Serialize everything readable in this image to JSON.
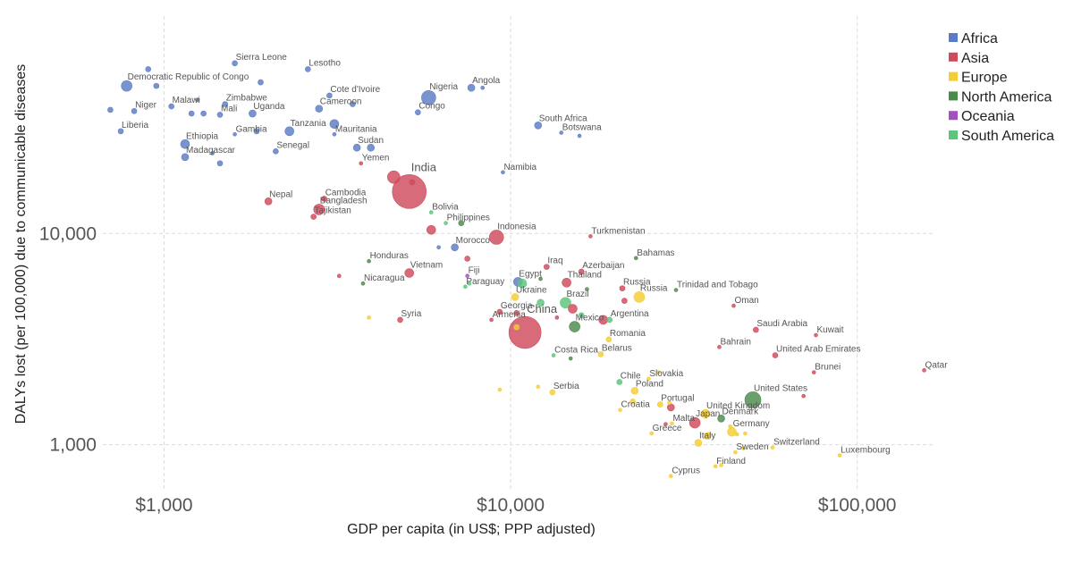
{
  "chart_data": {
    "type": "scatter",
    "xlabel": "GDP per capita (in US$; PPP adjusted)",
    "ylabel": "DALYs lost (per 100,000) due to communicable diseases",
    "x_scale": "log",
    "y_scale": "log",
    "xlim": [
      620,
      165000
    ],
    "ylim": [
      600,
      100000
    ],
    "x_ticks": [
      {
        "value": 1000,
        "label": "$1,000"
      },
      {
        "value": 10000,
        "label": "$10,000"
      },
      {
        "value": 100000,
        "label": "$100,000"
      }
    ],
    "y_ticks": [
      {
        "value": 1000,
        "label": "1,000"
      },
      {
        "value": 10000,
        "label": "10,000"
      }
    ],
    "grid": true,
    "legend_position": "top-right",
    "series": [
      {
        "name": "Africa",
        "color": "#5b7bc4",
        "points": [
          {
            "label": "Sierra Leone",
            "x": 1600,
            "y": 64000,
            "size": 3
          },
          {
            "label": "Lesotho",
            "x": 2600,
            "y": 60000,
            "size": 3
          },
          {
            "label": "Democratic Republic of Congo",
            "x": 780,
            "y": 50000,
            "size": 6
          },
          {
            "label": "",
            "x": 900,
            "y": 60000,
            "size": 3
          },
          {
            "label": "",
            "x": 950,
            "y": 50000,
            "size": 3
          },
          {
            "label": "",
            "x": 1900,
            "y": 52000,
            "size": 3
          },
          {
            "label": "Cote d'Ivoire",
            "x": 3000,
            "y": 45000,
            "size": 3
          },
          {
            "label": "Nigeria",
            "x": 5800,
            "y": 44000,
            "size": 8
          },
          {
            "label": "Angola",
            "x": 7700,
            "y": 49000,
            "size": 4
          },
          {
            "label": "",
            "x": 8300,
            "y": 49000,
            "size": 2
          },
          {
            "label": "Niger",
            "x": 820,
            "y": 38000,
            "size": 3
          },
          {
            "label": "Malawi",
            "x": 1050,
            "y": 40000,
            "size": 3
          },
          {
            "label": "Zimbabwe",
            "x": 1500,
            "y": 41000,
            "size": 3
          },
          {
            "label": "Cameroon",
            "x": 2800,
            "y": 39000,
            "size": 4
          },
          {
            "label": "",
            "x": 3500,
            "y": 41000,
            "size": 3
          },
          {
            "label": "",
            "x": 1250,
            "y": 43000,
            "size": 2
          },
          {
            "label": "Mali",
            "x": 1450,
            "y": 36500,
            "size": 3
          },
          {
            "label": "Uganda",
            "x": 1800,
            "y": 37000,
            "size": 4
          },
          {
            "label": "Congo",
            "x": 5400,
            "y": 37500,
            "size": 3
          },
          {
            "label": "",
            "x": 700,
            "y": 38500,
            "size": 3
          },
          {
            "label": "",
            "x": 1200,
            "y": 37000,
            "size": 3
          },
          {
            "label": "",
            "x": 1300,
            "y": 37000,
            "size": 3
          },
          {
            "label": "Liberia",
            "x": 750,
            "y": 30500,
            "size": 3
          },
          {
            "label": "Tanzania",
            "x": 2300,
            "y": 30500,
            "size": 5
          },
          {
            "label": "Gambia",
            "x": 1600,
            "y": 29500,
            "size": 2
          },
          {
            "label": "Mauritania",
            "x": 3100,
            "y": 29500,
            "size": 2
          },
          {
            "label": "",
            "x": 3100,
            "y": 33000,
            "size": 5
          },
          {
            "label": "",
            "x": 1850,
            "y": 30500,
            "size": 3
          },
          {
            "label": "Ethiopia",
            "x": 1150,
            "y": 26500,
            "size": 5
          },
          {
            "label": "South Africa",
            "x": 12000,
            "y": 32500,
            "size": 4
          },
          {
            "label": "Botswana",
            "x": 14000,
            "y": 30000,
            "size": 2
          },
          {
            "label": "",
            "x": 15800,
            "y": 29000,
            "size": 2
          },
          {
            "label": "Senegal",
            "x": 2100,
            "y": 24500,
            "size": 3
          },
          {
            "label": "Sudan",
            "x": 3600,
            "y": 25500,
            "size": 4
          },
          {
            "label": "",
            "x": 3950,
            "y": 25500,
            "size": 4
          },
          {
            "label": "Madagascar",
            "x": 1150,
            "y": 23000,
            "size": 4
          },
          {
            "label": "",
            "x": 1450,
            "y": 21500,
            "size": 3
          },
          {
            "label": "",
            "x": 1380,
            "y": 24000,
            "size": 2
          },
          {
            "label": "Namibia",
            "x": 9500,
            "y": 19500,
            "size": 2
          },
          {
            "label": "Morocco",
            "x": 6900,
            "y": 8600,
            "size": 4
          },
          {
            "label": "",
            "x": 6200,
            "y": 8600,
            "size": 2
          },
          {
            "label": "Egypt",
            "x": 10500,
            "y": 5900,
            "size": 5
          }
        ]
      },
      {
        "name": "Asia",
        "color": "#cf4a5b",
        "points": [
          {
            "label": "",
            "x": 4600,
            "y": 18500,
            "size": 7
          },
          {
            "label": "India",
            "x": 5100,
            "y": 15800,
            "size": 19
          },
          {
            "label": "",
            "x": 5200,
            "y": 17500,
            "size": 3
          },
          {
            "label": "Yemen",
            "x": 3700,
            "y": 21500,
            "size": 2
          },
          {
            "label": "Nepal",
            "x": 2000,
            "y": 14200,
            "size": 4
          },
          {
            "label": "Cambodia",
            "x": 2900,
            "y": 14600,
            "size": 3
          },
          {
            "label": "Bangladesh",
            "x": 2800,
            "y": 13000,
            "size": 6
          },
          {
            "label": "Tajikistan",
            "x": 2700,
            "y": 12000,
            "size": 3
          },
          {
            "label": "Indonesia",
            "x": 9100,
            "y": 9600,
            "size": 8
          },
          {
            "label": "",
            "x": 5900,
            "y": 10400,
            "size": 5
          },
          {
            "label": "Turkmenistan",
            "x": 17000,
            "y": 9700,
            "size": 2
          },
          {
            "label": "Vietnam",
            "x": 5100,
            "y": 6500,
            "size": 5
          },
          {
            "label": "",
            "x": 3200,
            "y": 6300,
            "size": 2
          },
          {
            "label": "Iraq",
            "x": 12700,
            "y": 6950,
            "size": 3
          },
          {
            "label": "Azerbaijan",
            "x": 16000,
            "y": 6600,
            "size": 3
          },
          {
            "label": "Thailand",
            "x": 14500,
            "y": 5850,
            "size": 5
          },
          {
            "label": "",
            "x": 7500,
            "y": 7600,
            "size": 3
          },
          {
            "label": "Russia",
            "x": 21000,
            "y": 5500,
            "size": 3
          },
          {
            "label": "",
            "x": 21300,
            "y": 4800,
            "size": 3
          },
          {
            "label": "",
            "x": 15100,
            "y": 4400,
            "size": 5
          },
          {
            "label": "Georgia",
            "x": 9300,
            "y": 4250,
            "size": 3
          },
          {
            "label": "Armenia",
            "x": 8800,
            "y": 3900,
            "size": 2
          },
          {
            "label": "",
            "x": 10400,
            "y": 4200,
            "size": 3
          },
          {
            "label": "Syria",
            "x": 4800,
            "y": 3900,
            "size": 3
          },
          {
            "label": "China",
            "x": 11000,
            "y": 3400,
            "size": 18
          },
          {
            "label": "",
            "x": 13600,
            "y": 4000,
            "size": 2
          },
          {
            "label": "Oman",
            "x": 44000,
            "y": 4550,
            "size": 2
          },
          {
            "label": "",
            "x": 18500,
            "y": 3900,
            "size": 5
          },
          {
            "label": "Saudi Arabia",
            "x": 51000,
            "y": 3500,
            "size": 3
          },
          {
            "label": "Kuwait",
            "x": 76000,
            "y": 3300,
            "size": 2
          },
          {
            "label": "Bahrain",
            "x": 40000,
            "y": 2900,
            "size": 2
          },
          {
            "label": "United Arab Emirates",
            "x": 58000,
            "y": 2650,
            "size": 3
          },
          {
            "label": "Brunei",
            "x": 75000,
            "y": 2200,
            "size": 2
          },
          {
            "label": "Qatar",
            "x": 156000,
            "y": 2250,
            "size": 2
          },
          {
            "label": "",
            "x": 70000,
            "y": 1700,
            "size": 2
          },
          {
            "label": "",
            "x": 29000,
            "y": 1500,
            "size": 4
          },
          {
            "label": "Japan",
            "x": 34000,
            "y": 1270,
            "size": 6
          },
          {
            "label": "",
            "x": 28000,
            "y": 1250,
            "size": 2
          }
        ]
      },
      {
        "name": "Europe",
        "color": "#f5cc33",
        "points": [
          {
            "label": "",
            "x": 3900,
            "y": 4000,
            "size": 2
          },
          {
            "label": "Ukraine",
            "x": 10300,
            "y": 5000,
            "size": 4
          },
          {
            "label": "Russia",
            "x": 23500,
            "y": 5000,
            "size": 6
          },
          {
            "label": "",
            "x": 10400,
            "y": 3600,
            "size": 3
          },
          {
            "label": "Romania",
            "x": 19200,
            "y": 3150,
            "size": 3
          },
          {
            "label": "Belarus",
            "x": 18200,
            "y": 2680,
            "size": 3
          },
          {
            "label": "",
            "x": 9300,
            "y": 1820,
            "size": 2
          },
          {
            "label": "",
            "x": 12000,
            "y": 1880,
            "size": 2
          },
          {
            "label": "Serbia",
            "x": 13200,
            "y": 1770,
            "size": 3
          },
          {
            "label": "Slovakia",
            "x": 25000,
            "y": 2050,
            "size": 2
          },
          {
            "label": "",
            "x": 26700,
            "y": 2200,
            "size": 2
          },
          {
            "label": "Poland",
            "x": 22800,
            "y": 1800,
            "size": 4
          },
          {
            "label": "",
            "x": 22500,
            "y": 1600,
            "size": 3
          },
          {
            "label": "Portugal",
            "x": 27000,
            "y": 1550,
            "size": 3
          },
          {
            "label": "",
            "x": 28700,
            "y": 1580,
            "size": 2
          },
          {
            "label": "Croatia",
            "x": 20700,
            "y": 1460,
            "size": 2
          },
          {
            "label": "Malta",
            "x": 29200,
            "y": 1260,
            "size": 2
          },
          {
            "label": "Greece",
            "x": 25500,
            "y": 1130,
            "size": 2
          },
          {
            "label": "United Kingdom",
            "x": 36500,
            "y": 1400,
            "size": 5
          },
          {
            "label": "Italy",
            "x": 34800,
            "y": 1020,
            "size": 4
          },
          {
            "label": "",
            "x": 37000,
            "y": 1100,
            "size": 4
          },
          {
            "label": "Germany",
            "x": 43500,
            "y": 1150,
            "size": 5
          },
          {
            "label": "",
            "x": 45000,
            "y": 1120,
            "size": 2
          },
          {
            "label": "",
            "x": 47500,
            "y": 1130,
            "size": 2
          },
          {
            "label": "",
            "x": 43000,
            "y": 1220,
            "size": 2
          },
          {
            "label": "Sweden",
            "x": 44500,
            "y": 920,
            "size": 2
          },
          {
            "label": "",
            "x": 47000,
            "y": 960,
            "size": 2
          },
          {
            "label": "Switzerland",
            "x": 57000,
            "y": 970,
            "size": 2
          },
          {
            "label": "Finland",
            "x": 39000,
            "y": 790,
            "size": 2
          },
          {
            "label": "",
            "x": 40500,
            "y": 800,
            "size": 2
          },
          {
            "label": "Cyprus",
            "x": 29000,
            "y": 710,
            "size": 2
          },
          {
            "label": "Luxembourg",
            "x": 89000,
            "y": 890,
            "size": 2
          }
        ]
      },
      {
        "name": "North America",
        "color": "#4a8a4a",
        "points": [
          {
            "label": "",
            "x": 7200,
            "y": 11200,
            "size": 3
          },
          {
            "label": "Bahamas",
            "x": 23000,
            "y": 7650,
            "size": 2
          },
          {
            "label": "Honduras",
            "x": 3900,
            "y": 7400,
            "size": 2
          },
          {
            "label": "Nicaragua",
            "x": 3750,
            "y": 5800,
            "size": 2
          },
          {
            "label": "",
            "x": 12200,
            "y": 6100,
            "size": 2
          },
          {
            "label": "",
            "x": 16600,
            "y": 5450,
            "size": 2
          },
          {
            "label": "Trinidad and Tobago",
            "x": 30000,
            "y": 5400,
            "size": 2
          },
          {
            "label": "Mexico",
            "x": 15300,
            "y": 3620,
            "size": 6
          },
          {
            "label": "",
            "x": 14900,
            "y": 2560,
            "size": 2
          },
          {
            "label": "United States",
            "x": 50000,
            "y": 1630,
            "size": 9
          },
          {
            "label": "Denmark",
            "x": 40500,
            "y": 1330,
            "size": 4
          }
        ]
      },
      {
        "name": "Oceania",
        "color": "#a450c0",
        "points": [
          {
            "label": "Fiji",
            "x": 7500,
            "y": 6300,
            "size": 2
          }
        ]
      },
      {
        "name": "South America",
        "color": "#5cc57a",
        "points": [
          {
            "label": "Bolivia",
            "x": 5900,
            "y": 12600,
            "size": 2
          },
          {
            "label": "Philippines",
            "x": 6500,
            "y": 11200,
            "size": 2
          },
          {
            "label": "",
            "x": 7600,
            "y": 5800,
            "size": 2
          },
          {
            "label": "Paraguay",
            "x": 7400,
            "y": 5600,
            "size": 2
          },
          {
            "label": "",
            "x": 10800,
            "y": 5800,
            "size": 5
          },
          {
            "label": "Brazil",
            "x": 14400,
            "y": 4700,
            "size": 6
          },
          {
            "label": "",
            "x": 12200,
            "y": 4700,
            "size": 4
          },
          {
            "label": "",
            "x": 16000,
            "y": 4100,
            "size": 3
          },
          {
            "label": "Argentina",
            "x": 19300,
            "y": 3900,
            "size": 3
          },
          {
            "label": "Costa Rica",
            "x": 13300,
            "y": 2650,
            "size": 2
          },
          {
            "label": "Chile",
            "x": 20600,
            "y": 1980,
            "size": 3
          }
        ]
      }
    ]
  }
}
